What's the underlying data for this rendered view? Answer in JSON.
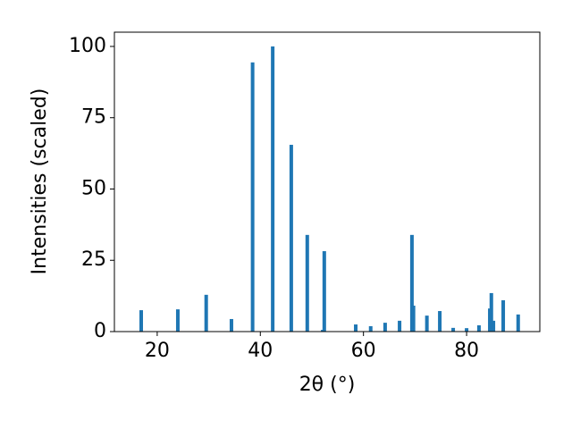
{
  "chart_data": {
    "type": "bar",
    "xlabel": "2θ (°)",
    "ylabel": "Intensities (scaled)",
    "x": [
      16.9,
      24.0,
      29.5,
      34.4,
      38.5,
      42.4,
      46.0,
      49.1,
      52.1,
      52.4,
      58.5,
      61.4,
      64.2,
      67.0,
      69.4,
      69.7,
      72.3,
      74.8,
      77.4,
      80.0,
      82.4,
      84.5,
      84.8,
      85.2,
      87.1,
      90.0
    ],
    "values": [
      7.5,
      7.8,
      12.9,
      4.4,
      94.4,
      100,
      65.5,
      33.9,
      0.6,
      28.2,
      2.5,
      1.9,
      3.1,
      3.8,
      33.9,
      9.1,
      5.6,
      7.2,
      1.3,
      1.2,
      2.2,
      8.1,
      13.5,
      3.8,
      11.0,
      6.0
    ],
    "color": "#1f77b4",
    "xlim": [
      11.7,
      94.2
    ],
    "ylim": [
      0,
      105
    ],
    "xticks": [
      20,
      40,
      60,
      80
    ],
    "yticks": [
      0,
      25,
      50,
      75,
      100
    ],
    "grid": false
  }
}
